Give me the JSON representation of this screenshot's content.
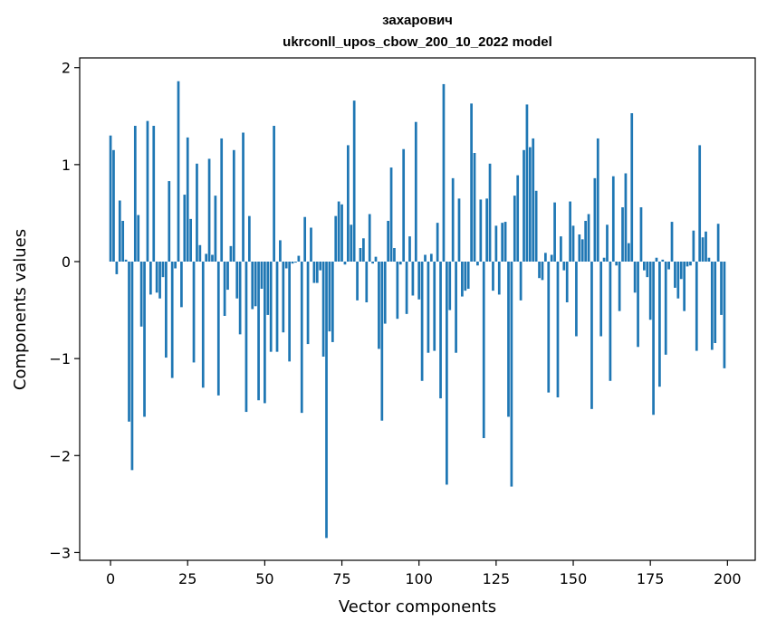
{
  "chart_data": {
    "type": "bar",
    "title": "захарович",
    "subtitle": "ukrconll_upos_cbow_200_10_2022 model",
    "xlabel": "Vector components",
    "ylabel": "Components values",
    "xlim": [
      -10,
      209
    ],
    "ylim": [
      -3.08,
      2.1
    ],
    "xticks": [
      0,
      25,
      50,
      75,
      100,
      125,
      150,
      175,
      200
    ],
    "yticks": [
      -3,
      -2,
      -1,
      0,
      1,
      2
    ],
    "ytick_labels": [
      "−3",
      "−2",
      "−1",
      "0",
      "1",
      "2"
    ],
    "grid": false,
    "color": "#1f77b4",
    "x": [
      0,
      1,
      2,
      3,
      4,
      5,
      6,
      7,
      8,
      9,
      10,
      11,
      12,
      13,
      14,
      15,
      16,
      17,
      18,
      19,
      20,
      21,
      22,
      23,
      24,
      25,
      26,
      27,
      28,
      29,
      30,
      31,
      32,
      33,
      34,
      35,
      36,
      37,
      38,
      39,
      40,
      41,
      42,
      43,
      44,
      45,
      46,
      47,
      48,
      49,
      50,
      51,
      52,
      53,
      54,
      55,
      56,
      57,
      58,
      59,
      60,
      61,
      62,
      63,
      64,
      65,
      66,
      67,
      68,
      69,
      70,
      71,
      72,
      73,
      74,
      75,
      76,
      77,
      78,
      79,
      80,
      81,
      82,
      83,
      84,
      85,
      86,
      87,
      88,
      89,
      90,
      91,
      92,
      93,
      94,
      95,
      96,
      97,
      98,
      99,
      100,
      101,
      102,
      103,
      104,
      105,
      106,
      107,
      108,
      109,
      110,
      111,
      112,
      113,
      114,
      115,
      116,
      117,
      118,
      119,
      120,
      121,
      122,
      123,
      124,
      125,
      126,
      127,
      128,
      129,
      130,
      131,
      132,
      133,
      134,
      135,
      136,
      137,
      138,
      139,
      140,
      141,
      142,
      143,
      144,
      145,
      146,
      147,
      148,
      149,
      150,
      151,
      152,
      153,
      154,
      155,
      156,
      157,
      158,
      159,
      160,
      161,
      162,
      163,
      164,
      165,
      166,
      167,
      168,
      169,
      170,
      171,
      172,
      173,
      174,
      175,
      176,
      177,
      178,
      179,
      180,
      181,
      182,
      183,
      184,
      185,
      186,
      187,
      188,
      189,
      190,
      191,
      192,
      193,
      194,
      195,
      196,
      197,
      198,
      199
    ],
    "values": [
      1.3,
      1.15,
      -0.13,
      0.63,
      0.42,
      0.02,
      -1.65,
      -2.15,
      1.4,
      0.48,
      -0.67,
      -1.6,
      1.45,
      -0.34,
      1.4,
      -0.32,
      -0.38,
      -0.16,
      -0.99,
      0.83,
      -1.2,
      -0.07,
      1.86,
      -0.47,
      0.69,
      1.28,
      0.44,
      -1.04,
      1.01,
      0.17,
      -1.3,
      0.08,
      1.06,
      0.07,
      0.68,
      -1.38,
      1.27,
      -0.56,
      -0.29,
      0.16,
      1.15,
      -0.38,
      -0.75,
      1.33,
      -1.55,
      0.47,
      -0.49,
      -0.46,
      -1.43,
      -0.28,
      -1.46,
      -0.55,
      -0.93,
      1.4,
      -0.93,
      0.22,
      -0.73,
      -0.07,
      -1.03,
      -0.02,
      -0.01,
      0.06,
      -1.56,
      0.46,
      -0.85,
      0.35,
      -0.22,
      -0.22,
      -0.09,
      -0.98,
      -2.85,
      -0.72,
      -0.83,
      0.47,
      0.62,
      0.59,
      -0.03,
      1.2,
      0.38,
      1.66,
      -0.4,
      0.14,
      0.24,
      -0.42,
      0.49,
      -0.02,
      0.05,
      -0.9,
      -1.64,
      -0.64,
      0.42,
      0.97,
      0.14,
      -0.59,
      -0.03,
      1.16,
      -0.54,
      0.26,
      -0.35,
      1.44,
      -0.39,
      -1.23,
      0.07,
      -0.94,
      0.08,
      -0.92,
      0.4,
      -1.41,
      1.83,
      -2.3,
      -0.5,
      0.86,
      -0.94,
      0.65,
      -0.36,
      -0.3,
      -0.28,
      1.63,
      1.12,
      -0.04,
      0.64,
      -1.82,
      0.65,
      1.01,
      -0.3,
      0.37,
      -0.34,
      0.4,
      0.41,
      -1.6,
      -2.32,
      0.68,
      0.89,
      -0.4,
      1.15,
      1.62,
      1.18,
      1.27,
      0.73,
      -0.17,
      -0.19,
      0.09,
      -1.35,
      0.07,
      0.61,
      -1.4,
      0.26,
      -0.09,
      -0.42,
      0.62,
      0.37,
      -0.77,
      0.28,
      0.23,
      0.42,
      0.49,
      -1.52,
      0.86,
      1.27,
      -0.77,
      0.04,
      0.38,
      -1.23,
      0.88,
      -0.04,
      -0.51,
      0.56,
      0.91,
      0.19,
      1.53,
      -0.32,
      -0.88,
      0.56,
      -0.09,
      -0.16,
      -0.6,
      -1.58,
      0.04,
      -1.29,
      0.02,
      -0.96,
      -0.08,
      0.41,
      -0.27,
      -0.38,
      -0.18,
      -0.51,
      -0.05,
      -0.04,
      0.32,
      -0.92,
      1.2,
      0.25,
      0.31,
      0.04,
      -0.91,
      -0.84,
      0.39,
      -0.55,
      -1.1
    ]
  }
}
